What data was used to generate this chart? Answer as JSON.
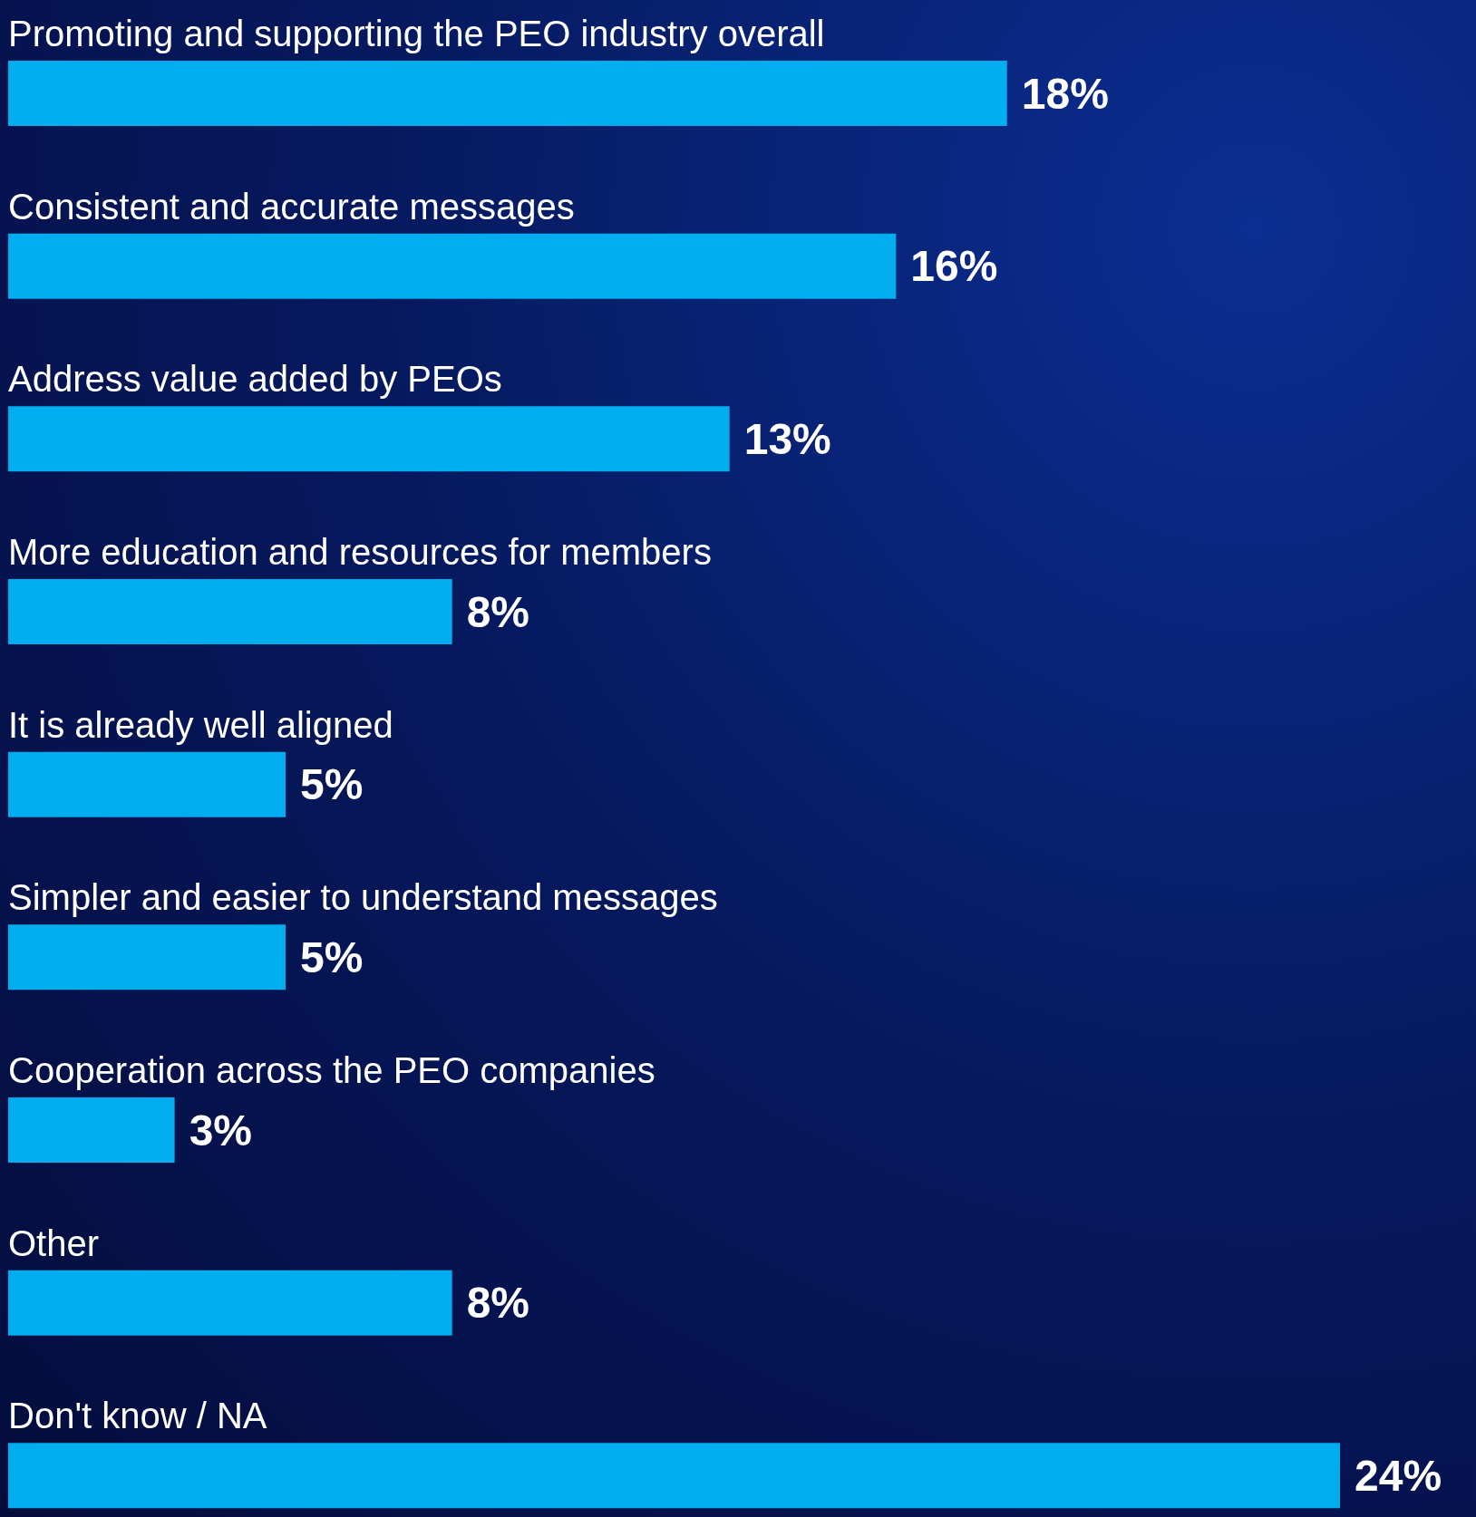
{
  "chart_data": {
    "type": "bar",
    "orientation": "horizontal",
    "data_labels": true,
    "categories": [
      "Promoting and supporting the PEO industry overall",
      "Consistent and accurate messages",
      "Address value added by PEOs",
      "More education and resources for members",
      "It is already well aligned",
      "Simpler and easier to understand messages",
      "Cooperation across the PEO companies",
      "Other",
      "Don't know / NA"
    ],
    "values": [
      18,
      16,
      13,
      8,
      5,
      5,
      3,
      8,
      24
    ],
    "value_labels": [
      "18%",
      "16%",
      "13%",
      "8%",
      "5%",
      "5%",
      "3%",
      "8%",
      "24%"
    ],
    "color": "#00aeef"
  }
}
